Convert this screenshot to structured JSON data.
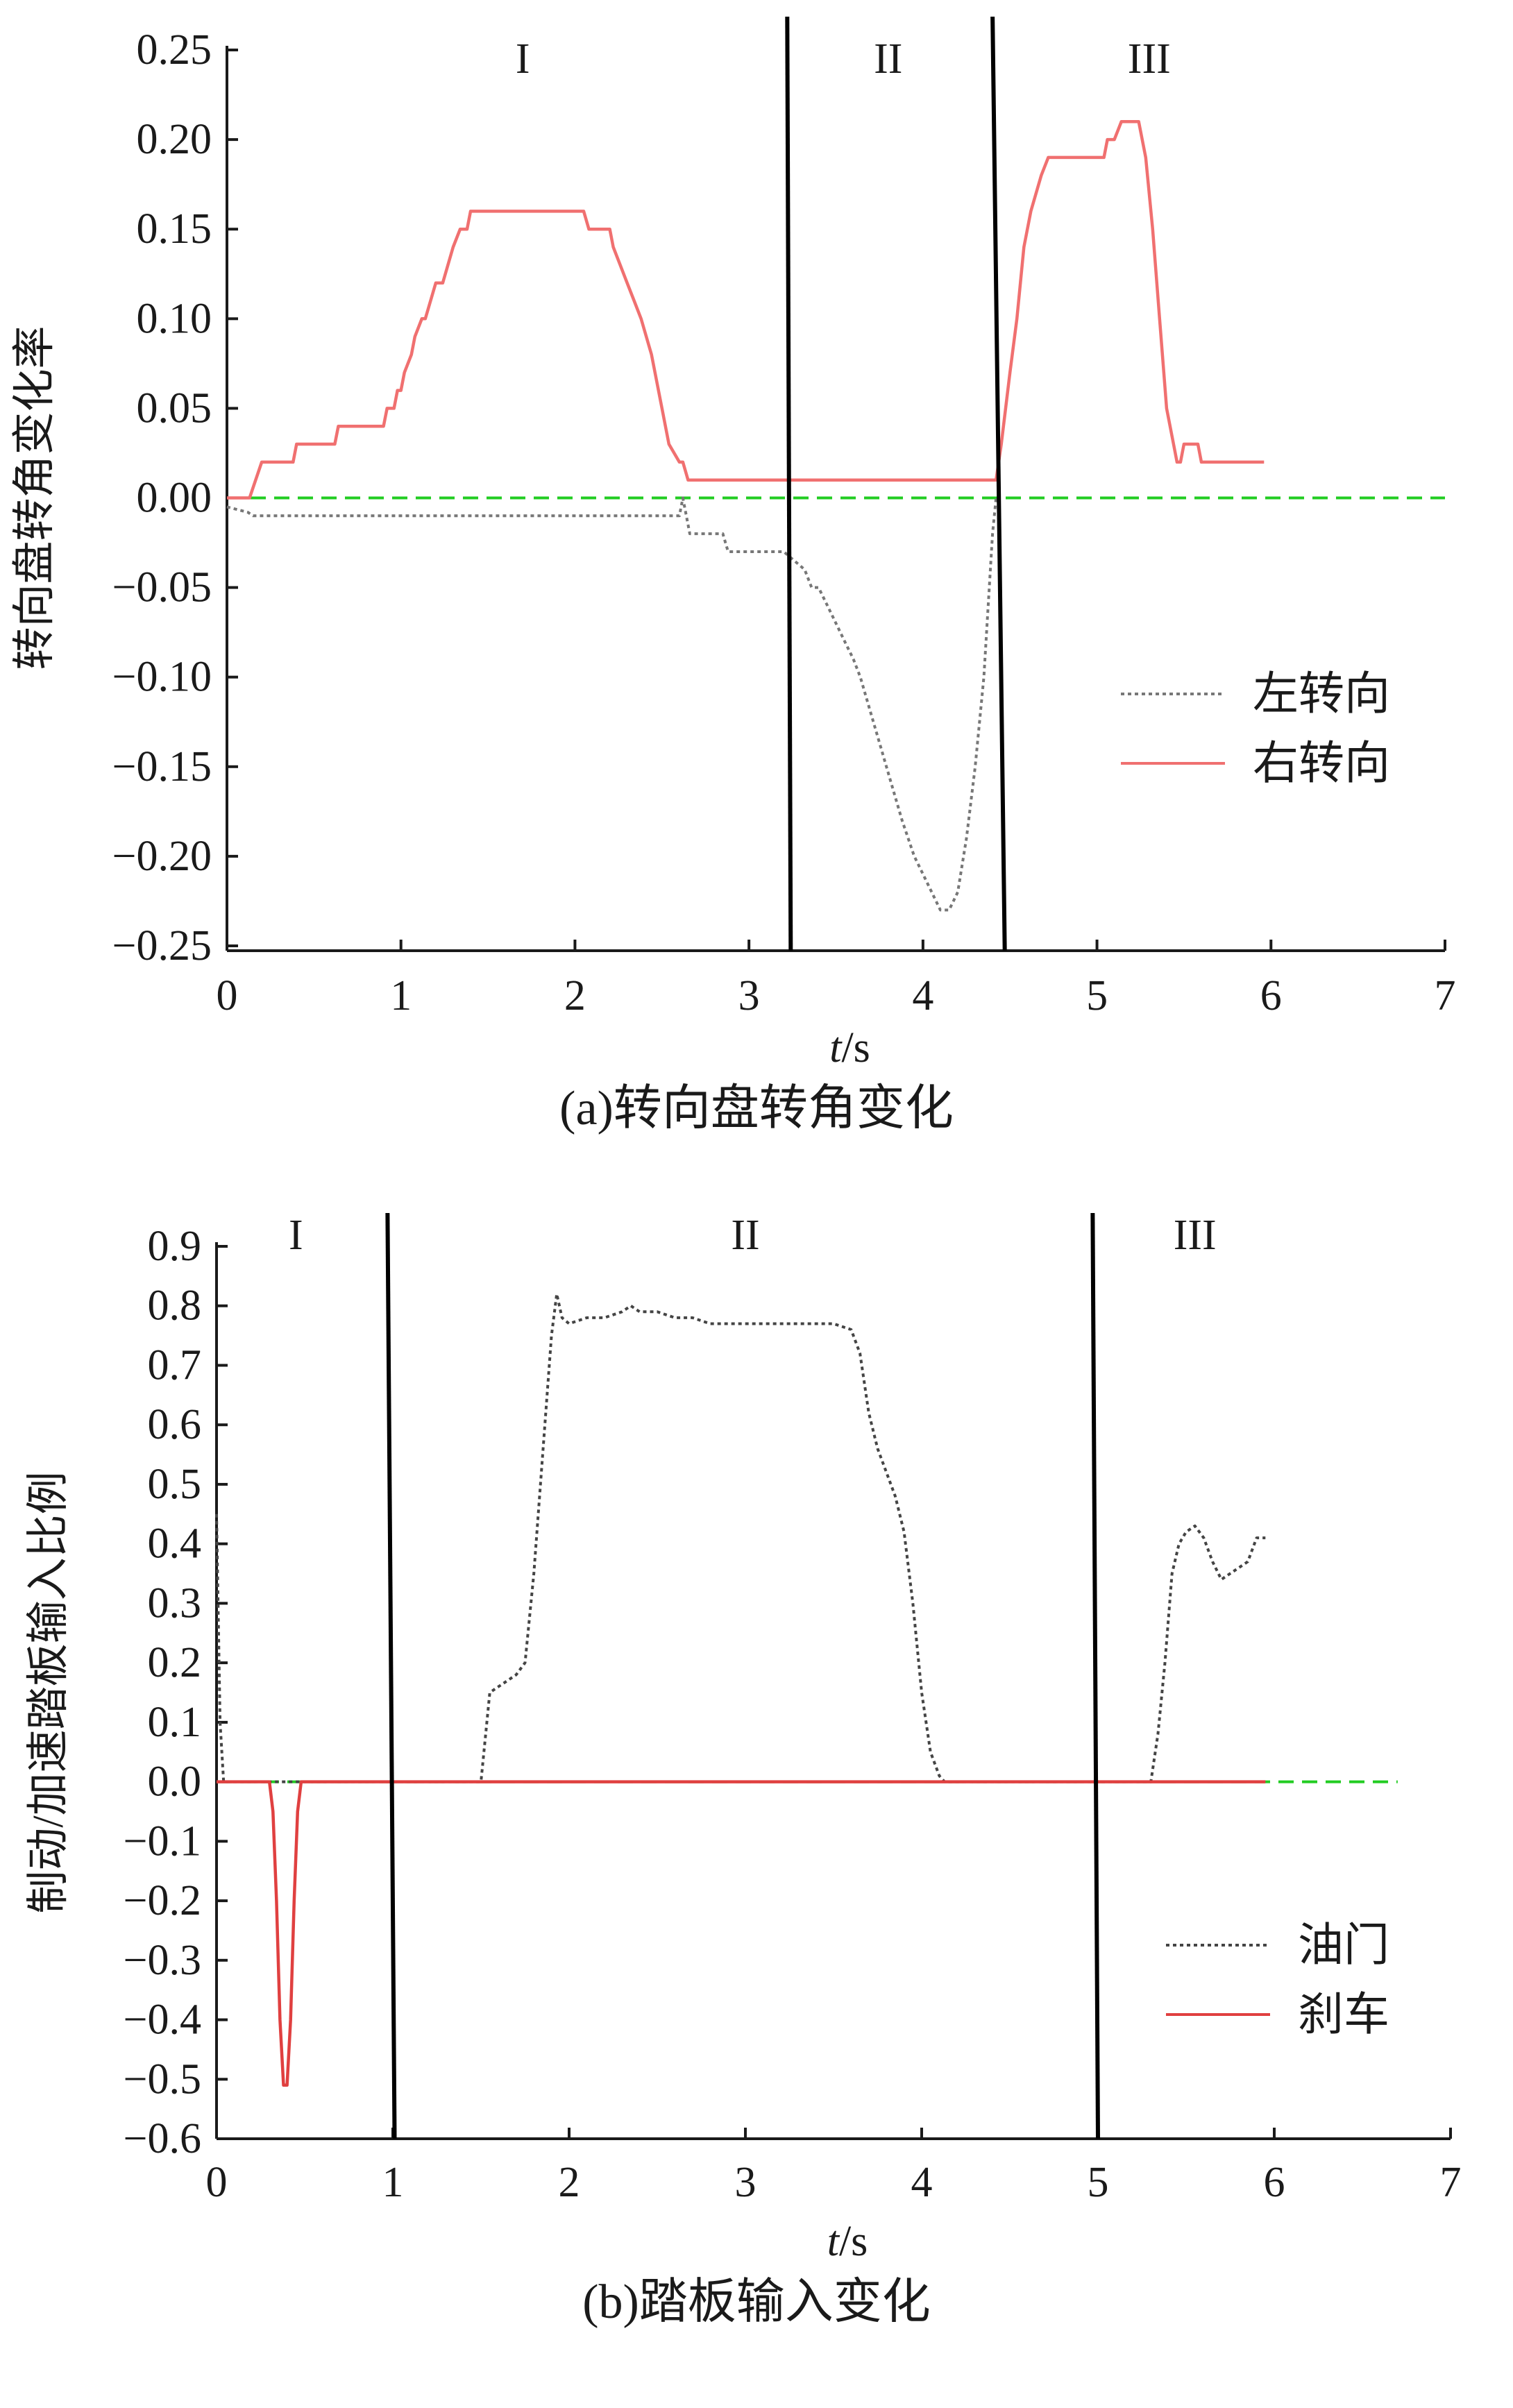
{
  "chart_data": [
    {
      "type": "line",
      "caption": "(a)转向盘转角变化",
      "title": "",
      "xlabel_italic": "t",
      "xlabel_rest": "/s",
      "ylabel": "转向盘转角变化率",
      "xlim": [
        0,
        7
      ],
      "ylim": [
        -0.25,
        0.25
      ],
      "x_ticks": [
        0,
        1,
        2,
        3,
        4,
        5,
        6,
        7
      ],
      "x_tick_labels": [
        "0",
        "1",
        "2",
        "3",
        "4",
        "5",
        "6",
        "7"
      ],
      "y_ticks": [
        0.25,
        0.2,
        0.15,
        0.1,
        0.05,
        0.0,
        -0.05,
        -0.1,
        -0.15,
        -0.2,
        -0.25
      ],
      "y_tick_labels": [
        "0.25",
        "0.20",
        "0.15",
        "0.10",
        "0.05",
        "0.00",
        "−0.05",
        "−0.10",
        "−0.15",
        "−0.20",
        "−0.25"
      ],
      "grid": false,
      "legend_position": "right-middle",
      "regions": [
        {
          "label": "I",
          "x": 1.7
        },
        {
          "label": "II",
          "x": 3.8
        },
        {
          "label": "III",
          "x": 5.3
        }
      ],
      "boundaries": [
        {
          "top_x": 3.22,
          "bottom_x": 3.24
        },
        {
          "top_x": 4.4,
          "bottom_x": 4.47
        }
      ],
      "reference_line": {
        "y": 0.0,
        "color": "#22cc22"
      },
      "series": [
        {
          "name": "左转向",
          "color": "#777777",
          "dash": "dotted",
          "x": [
            0.0,
            0.12,
            0.15,
            2.6,
            2.62,
            2.64,
            2.66,
            2.68,
            2.72,
            2.85,
            2.88,
            2.95,
            3.2,
            3.32,
            3.36,
            3.4,
            3.45,
            3.5,
            3.55,
            3.6,
            3.64,
            3.7,
            3.76,
            3.82,
            3.88,
            3.95,
            4.0,
            4.05,
            4.1,
            4.15,
            4.2,
            4.25,
            4.3,
            4.35,
            4.4,
            4.42
          ],
          "y": [
            -0.005,
            -0.008,
            -0.01,
            -0.01,
            0.0,
            -0.01,
            -0.02,
            -0.02,
            -0.02,
            -0.02,
            -0.03,
            -0.03,
            -0.03,
            -0.04,
            -0.05,
            -0.05,
            -0.06,
            -0.07,
            -0.08,
            -0.09,
            -0.1,
            -0.12,
            -0.14,
            -0.16,
            -0.18,
            -0.2,
            -0.21,
            -0.22,
            -0.23,
            -0.23,
            -0.22,
            -0.19,
            -0.15,
            -0.1,
            -0.02,
            0.0
          ]
        },
        {
          "name": "右转向",
          "color": "#f07070",
          "dash": "solid",
          "x": [
            0.0,
            0.13,
            0.2,
            0.38,
            0.4,
            0.62,
            0.64,
            0.9,
            0.92,
            0.96,
            0.98,
            1.0,
            1.02,
            1.06,
            1.08,
            1.12,
            1.14,
            1.2,
            1.24,
            1.3,
            1.34,
            1.38,
            1.4,
            2.05,
            2.08,
            2.2,
            2.22,
            2.26,
            2.3,
            2.34,
            2.38,
            2.44,
            2.5,
            2.54,
            2.6,
            2.62,
            2.65,
            4.42,
            4.45,
            4.5,
            4.54,
            4.58,
            4.62,
            4.68,
            4.72,
            4.8,
            4.84,
            5.04,
            5.06,
            5.1,
            5.14,
            5.2,
            5.24,
            5.28,
            5.32,
            5.36,
            5.4,
            5.44,
            5.46,
            5.48,
            5.5,
            5.52,
            5.58,
            5.6,
            5.96
          ],
          "y": [
            0.0,
            0.0,
            0.02,
            0.02,
            0.03,
            0.03,
            0.04,
            0.04,
            0.05,
            0.05,
            0.06,
            0.06,
            0.07,
            0.08,
            0.09,
            0.1,
            0.1,
            0.12,
            0.12,
            0.14,
            0.15,
            0.15,
            0.16,
            0.16,
            0.15,
            0.15,
            0.14,
            0.13,
            0.12,
            0.11,
            0.1,
            0.08,
            0.05,
            0.03,
            0.02,
            0.02,
            0.01,
            0.01,
            0.03,
            0.07,
            0.1,
            0.14,
            0.16,
            0.18,
            0.19,
            0.19,
            0.19,
            0.19,
            0.2,
            0.2,
            0.21,
            0.21,
            0.21,
            0.19,
            0.15,
            0.1,
            0.05,
            0.03,
            0.02,
            0.02,
            0.03,
            0.03,
            0.03,
            0.02,
            0.02
          ]
        }
      ]
    },
    {
      "type": "line",
      "caption": "(b)踏板输入变化",
      "title": "",
      "xlabel_italic": "t",
      "xlabel_rest": "/s",
      "ylabel": "制动/加速踏板输入比例",
      "xlim": [
        0,
        7
      ],
      "ylim": [
        -0.6,
        0.9
      ],
      "x_ticks": [
        0,
        1,
        2,
        3,
        4,
        5,
        6,
        7
      ],
      "x_tick_labels": [
        "0",
        "1",
        "2",
        "3",
        "4",
        "5",
        "6",
        "7"
      ],
      "y_ticks": [
        0.9,
        0.8,
        0.7,
        0.6,
        0.5,
        0.4,
        0.3,
        0.2,
        0.1,
        0.0,
        -0.1,
        -0.2,
        -0.3,
        -0.4,
        -0.5,
        -0.6
      ],
      "y_tick_labels": [
        "0.9",
        "0.8",
        "0.7",
        "0.6",
        "0.5",
        "0.4",
        "0.3",
        "0.2",
        "0.1",
        "0.0",
        "−0.1",
        "−0.2",
        "−0.3",
        "−0.4",
        "−0.5",
        "−0.6"
      ],
      "grid": false,
      "legend_position": "right-bottom",
      "regions": [
        {
          "label": "I",
          "x": 0.45
        },
        {
          "label": "II",
          "x": 3.0
        },
        {
          "label": "III",
          "x": 5.55
        }
      ],
      "boundaries": [
        {
          "top_x": 0.97,
          "bottom_x": 1.01
        },
        {
          "top_x": 4.97,
          "bottom_x": 5.0
        }
      ],
      "reference_line": {
        "y": 0.0,
        "color": "#22cc22",
        "x_end": 6.7
      },
      "series": [
        {
          "name": "油门",
          "color": "#444444",
          "dash": "dotted",
          "x": [
            0.0,
            0.02,
            0.04,
            0.06,
            1.5,
            1.55,
            1.6,
            1.65,
            1.7,
            1.75,
            1.8,
            1.85,
            1.9,
            1.93,
            1.96,
            2.0,
            2.1,
            2.2,
            2.3,
            2.35,
            2.4,
            2.5,
            2.6,
            2.7,
            2.8,
            3.0,
            3.5,
            3.6,
            3.65,
            3.7,
            3.75,
            3.8,
            3.85,
            3.9,
            3.95,
            4.0,
            4.05,
            4.1,
            4.13,
            5.3,
            5.34,
            5.38,
            5.42,
            5.46,
            5.5,
            5.55,
            5.6,
            5.65,
            5.7,
            5.75,
            5.8,
            5.85,
            5.9,
            5.95
          ],
          "y": [
            0.45,
            0.1,
            0.0,
            0.0,
            0.0,
            0.15,
            0.16,
            0.17,
            0.18,
            0.2,
            0.35,
            0.55,
            0.75,
            0.82,
            0.78,
            0.77,
            0.78,
            0.78,
            0.79,
            0.8,
            0.79,
            0.79,
            0.78,
            0.78,
            0.77,
            0.77,
            0.77,
            0.76,
            0.72,
            0.62,
            0.56,
            0.52,
            0.48,
            0.42,
            0.3,
            0.15,
            0.05,
            0.01,
            0.0,
            0.0,
            0.08,
            0.2,
            0.35,
            0.4,
            0.42,
            0.43,
            0.41,
            0.37,
            0.34,
            0.35,
            0.36,
            0.37,
            0.41,
            0.41
          ]
        },
        {
          "name": "刹车",
          "color": "#e04040",
          "dash": "solid",
          "x": [
            0.0,
            0.3,
            0.32,
            0.34,
            0.36,
            0.38,
            0.4,
            0.42,
            0.44,
            0.46,
            0.48,
            0.5,
            5.95
          ],
          "y": [
            0.0,
            0.0,
            -0.05,
            -0.2,
            -0.4,
            -0.51,
            -0.51,
            -0.4,
            -0.2,
            -0.05,
            0.0,
            0.0,
            0.0
          ]
        }
      ]
    }
  ]
}
